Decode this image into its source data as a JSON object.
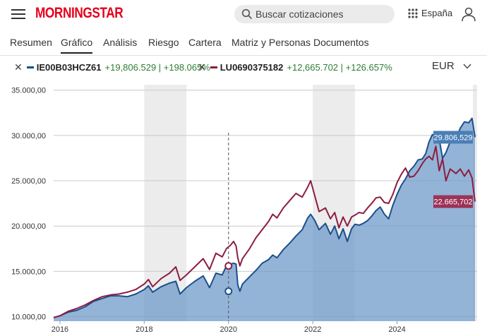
{
  "header": {
    "brand": "MORNINGSTAR",
    "search_placeholder": "Buscar cotizaciones",
    "region": "España"
  },
  "tabs": [
    "Resumen",
    "Gráfico",
    "Análisis",
    "Riesgo",
    "Cartera",
    "Matriz y Personas",
    "Documentos"
  ],
  "active_tab": "Gráfico",
  "legend": {
    "series": [
      {
        "code": "IE00B03HCZ61",
        "change": "+19,806.529 | +198.065%",
        "color": "#1b4f8c"
      },
      {
        "code": "LU0690375182",
        "change": "+12,665.702 | +126.657%",
        "color": "#8c1d40"
      }
    ],
    "currency": "EUR"
  },
  "chart_data": {
    "type": "line",
    "title": "",
    "yticks": [
      "35.000,00",
      "30.000,00",
      "25.000,00",
      "20.000,00",
      "15.000,00",
      "10.000,00"
    ],
    "ytick_values": [
      35000,
      30000,
      25000,
      20000,
      15000,
      10000
    ],
    "xticks": [
      "2016",
      "2018",
      "2020",
      "2022",
      "2024"
    ],
    "xtick_values": [
      2016,
      2018,
      2020,
      2022,
      2024
    ],
    "xlim": [
      2015.85,
      2025.9
    ],
    "ylim": [
      9500,
      35600
    ],
    "shaded_years": [
      [
        2018,
        2019
      ],
      [
        2022,
        2023
      ],
      [
        2025.8,
        2025.9
      ]
    ],
    "marker_x": 2020.0,
    "marker_values": {
      "IE00B03HCZ61": 12800,
      "LU0690375182": 15600
    },
    "end_labels": {
      "IE00B03HCZ61": "29.806,529",
      "LU0690375182": "22.665,702"
    },
    "series": [
      {
        "name": "IE00B03HCZ61",
        "color": "#1b4f8c",
        "points": [
          [
            2015.85,
            9900
          ],
          [
            2016.0,
            10100
          ],
          [
            2016.2,
            10500
          ],
          [
            2016.4,
            10700
          ],
          [
            2016.6,
            11100
          ],
          [
            2016.8,
            11700
          ],
          [
            2017.0,
            12000
          ],
          [
            2017.2,
            12300
          ],
          [
            2017.4,
            12300
          ],
          [
            2017.6,
            12200
          ],
          [
            2017.8,
            12500
          ],
          [
            2018.0,
            13000
          ],
          [
            2018.1,
            13400
          ],
          [
            2018.2,
            12700
          ],
          [
            2018.4,
            13300
          ],
          [
            2018.6,
            13700
          ],
          [
            2018.75,
            13900
          ],
          [
            2018.85,
            12500
          ],
          [
            2019.0,
            13200
          ],
          [
            2019.2,
            13900
          ],
          [
            2019.4,
            14500
          ],
          [
            2019.55,
            13200
          ],
          [
            2019.7,
            14800
          ],
          [
            2019.85,
            14600
          ],
          [
            2019.95,
            15600
          ],
          [
            2020.05,
            15800
          ],
          [
            2020.12,
            15900
          ],
          [
            2020.18,
            15800
          ],
          [
            2020.22,
            13500
          ],
          [
            2020.27,
            12800
          ],
          [
            2020.33,
            13600
          ],
          [
            2020.5,
            14400
          ],
          [
            2020.65,
            15100
          ],
          [
            2020.8,
            15900
          ],
          [
            2020.95,
            16300
          ],
          [
            2021.05,
            16800
          ],
          [
            2021.15,
            16500
          ],
          [
            2021.3,
            17400
          ],
          [
            2021.45,
            18100
          ],
          [
            2021.6,
            18900
          ],
          [
            2021.75,
            19600
          ],
          [
            2021.88,
            20900
          ],
          [
            2021.95,
            21300
          ],
          [
            2022.05,
            20600
          ],
          [
            2022.15,
            19600
          ],
          [
            2022.3,
            20300
          ],
          [
            2022.42,
            19100
          ],
          [
            2022.52,
            20000
          ],
          [
            2022.62,
            18600
          ],
          [
            2022.72,
            19700
          ],
          [
            2022.82,
            18300
          ],
          [
            2022.92,
            19700
          ],
          [
            2023.0,
            20200
          ],
          [
            2023.1,
            20100
          ],
          [
            2023.2,
            20300
          ],
          [
            2023.3,
            20600
          ],
          [
            2023.4,
            21100
          ],
          [
            2023.5,
            21700
          ],
          [
            2023.6,
            22100
          ],
          [
            2023.7,
            21300
          ],
          [
            2023.8,
            20800
          ],
          [
            2023.9,
            22300
          ],
          [
            2024.0,
            23500
          ],
          [
            2024.1,
            24500
          ],
          [
            2024.2,
            25200
          ],
          [
            2024.3,
            26100
          ],
          [
            2024.4,
            26600
          ],
          [
            2024.5,
            27300
          ],
          [
            2024.6,
            27400
          ],
          [
            2024.68,
            28000
          ],
          [
            2024.76,
            29300
          ],
          [
            2024.84,
            30100
          ],
          [
            2024.92,
            29900
          ],
          [
            2025.0,
            29600
          ],
          [
            2025.08,
            27500
          ],
          [
            2025.16,
            28100
          ],
          [
            2025.26,
            29300
          ],
          [
            2025.4,
            29600
          ],
          [
            2025.5,
            30800
          ],
          [
            2025.6,
            31500
          ],
          [
            2025.7,
            31400
          ],
          [
            2025.78,
            31900
          ],
          [
            2025.85,
            29800
          ]
        ]
      },
      {
        "name": "LU0690375182",
        "color": "#8c1d40",
        "points": [
          [
            2015.85,
            9900
          ],
          [
            2016.0,
            10100
          ],
          [
            2016.2,
            10600
          ],
          [
            2016.4,
            10900
          ],
          [
            2016.6,
            11300
          ],
          [
            2016.8,
            11800
          ],
          [
            2017.0,
            12200
          ],
          [
            2017.2,
            12400
          ],
          [
            2017.4,
            12500
          ],
          [
            2017.6,
            12700
          ],
          [
            2017.8,
            13000
          ],
          [
            2018.0,
            13600
          ],
          [
            2018.1,
            14100
          ],
          [
            2018.2,
            13300
          ],
          [
            2018.4,
            14200
          ],
          [
            2018.6,
            14800
          ],
          [
            2018.75,
            15500
          ],
          [
            2018.85,
            14000
          ],
          [
            2019.0,
            14600
          ],
          [
            2019.2,
            15500
          ],
          [
            2019.4,
            16400
          ],
          [
            2019.55,
            15200
          ],
          [
            2019.7,
            17000
          ],
          [
            2019.85,
            16600
          ],
          [
            2019.95,
            17500
          ],
          [
            2020.05,
            17900
          ],
          [
            2020.12,
            18300
          ],
          [
            2020.18,
            17800
          ],
          [
            2020.22,
            16500
          ],
          [
            2020.27,
            15600
          ],
          [
            2020.33,
            16400
          ],
          [
            2020.5,
            17500
          ],
          [
            2020.65,
            18700
          ],
          [
            2020.8,
            19600
          ],
          [
            2020.95,
            20500
          ],
          [
            2021.05,
            21300
          ],
          [
            2021.15,
            20900
          ],
          [
            2021.3,
            22000
          ],
          [
            2021.45,
            22800
          ],
          [
            2021.6,
            23600
          ],
          [
            2021.75,
            23200
          ],
          [
            2021.88,
            24300
          ],
          [
            2021.95,
            25000
          ],
          [
            2022.05,
            23300
          ],
          [
            2022.15,
            21600
          ],
          [
            2022.3,
            22000
          ],
          [
            2022.42,
            20800
          ],
          [
            2022.52,
            21500
          ],
          [
            2022.62,
            19800
          ],
          [
            2022.72,
            21000
          ],
          [
            2022.82,
            20000
          ],
          [
            2022.92,
            21000
          ],
          [
            2023.0,
            21200
          ],
          [
            2023.1,
            21500
          ],
          [
            2023.2,
            21400
          ],
          [
            2023.3,
            22000
          ],
          [
            2023.4,
            22500
          ],
          [
            2023.5,
            23100
          ],
          [
            2023.6,
            23200
          ],
          [
            2023.7,
            22600
          ],
          [
            2023.8,
            22500
          ],
          [
            2023.9,
            23500
          ],
          [
            2024.0,
            24800
          ],
          [
            2024.1,
            25700
          ],
          [
            2024.2,
            26400
          ],
          [
            2024.3,
            25400
          ],
          [
            2024.4,
            25500
          ],
          [
            2024.5,
            26100
          ],
          [
            2024.6,
            26900
          ],
          [
            2024.68,
            27400
          ],
          [
            2024.76,
            27700
          ],
          [
            2024.84,
            27300
          ],
          [
            2024.92,
            28800
          ],
          [
            2025.0,
            26100
          ],
          [
            2025.08,
            27400
          ],
          [
            2025.16,
            25000
          ],
          [
            2025.26,
            26300
          ],
          [
            2025.4,
            25800
          ],
          [
            2025.5,
            26300
          ],
          [
            2025.6,
            25500
          ],
          [
            2025.7,
            26200
          ],
          [
            2025.78,
            25300
          ],
          [
            2025.85,
            22700
          ]
        ]
      }
    ]
  }
}
